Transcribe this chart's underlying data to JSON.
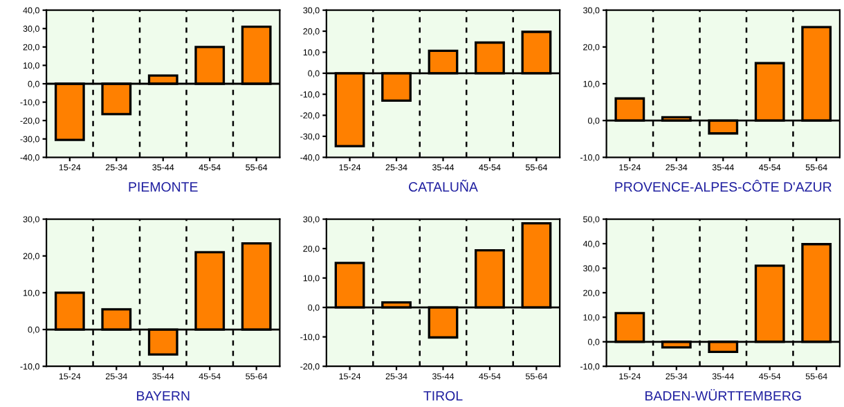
{
  "chart_data": [
    {
      "type": "bar",
      "xlabel": "PIEMONTE",
      "categories": [
        "15-24",
        "25-34",
        "35-44",
        "45-54",
        "55-64"
      ],
      "values": [
        -30.5,
        -16.5,
        4.5,
        20,
        31
      ],
      "color": "#ff8000",
      "ylim": [
        -40,
        40
      ],
      "yticks": [
        {
          "value": -40,
          "label": "-40,0"
        },
        {
          "value": -30,
          "label": "-30,0"
        },
        {
          "value": -20,
          "label": "-20,0"
        },
        {
          "value": -10,
          "label": "-10,0"
        },
        {
          "value": 0,
          "label": "0,0"
        },
        {
          "value": 10,
          "label": "10,0"
        },
        {
          "value": 20,
          "label": "20,0"
        },
        {
          "value": 30,
          "label": "30,0"
        },
        {
          "value": 40,
          "label": "40,0"
        }
      ],
      "grid": "x"
    },
    {
      "type": "bar",
      "xlabel": "CATALUÑA",
      "categories": [
        "15-24",
        "25-34",
        "35-44",
        "45-54",
        "55-64"
      ],
      "values": [
        -34.7,
        -13,
        10.7,
        14.6,
        19.7
      ],
      "color": "#ff8000",
      "ylim": [
        -40,
        30
      ],
      "yticks": [
        {
          "value": -40,
          "label": "-40,0"
        },
        {
          "value": -30,
          "label": "-30,0"
        },
        {
          "value": -20,
          "label": "-20,0"
        },
        {
          "value": -10,
          "label": "-10,0"
        },
        {
          "value": 0,
          "label": "0,0"
        },
        {
          "value": 10,
          "label": "10,0"
        },
        {
          "value": 20,
          "label": "20,0"
        },
        {
          "value": 30,
          "label": "30,0"
        }
      ],
      "grid": "x"
    },
    {
      "type": "bar",
      "xlabel": "PROVENCE-ALPES-CÔTE D'AZUR",
      "categories": [
        "15-24",
        "25-34",
        "35-44",
        "45-54",
        "55-64"
      ],
      "values": [
        6,
        0.9,
        -3.5,
        15.6,
        25.4
      ],
      "color": "#ff8000",
      "ylim": [
        -10,
        30
      ],
      "yticks": [
        {
          "value": -10,
          "label": "-10,0"
        },
        {
          "value": 0,
          "label": "0,0"
        },
        {
          "value": 10,
          "label": "10,0"
        },
        {
          "value": 20,
          "label": "20,0"
        },
        {
          "value": 30,
          "label": "30,0"
        }
      ],
      "grid": "x"
    },
    {
      "type": "bar",
      "xlabel": "BAYERN",
      "categories": [
        "15-24",
        "25-34",
        "35-44",
        "45-54",
        "55-64"
      ],
      "values": [
        10,
        5.5,
        -6.8,
        21,
        23.4
      ],
      "color": "#ff8000",
      "ylim": [
        -10,
        30
      ],
      "yticks": [
        {
          "value": -10,
          "label": "-10,0"
        },
        {
          "value": 0,
          "label": "0,0"
        },
        {
          "value": 10,
          "label": "10,0"
        },
        {
          "value": 20,
          "label": "20,0"
        },
        {
          "value": 30,
          "label": "30,0"
        }
      ],
      "grid": "x"
    },
    {
      "type": "bar",
      "xlabel": "TIROL",
      "categories": [
        "15-24",
        "25-34",
        "35-44",
        "45-54",
        "55-64"
      ],
      "values": [
        15.1,
        1.7,
        -10.2,
        19.4,
        28.6
      ],
      "color": "#ff8000",
      "ylim": [
        -20,
        30
      ],
      "yticks": [
        {
          "value": -20,
          "label": "-20,0"
        },
        {
          "value": -10,
          "label": "-10,0"
        },
        {
          "value": 0,
          "label": "0,0"
        },
        {
          "value": 10,
          "label": "10,0"
        },
        {
          "value": 20,
          "label": "20,0"
        },
        {
          "value": 30,
          "label": "30,0"
        }
      ],
      "grid": "x"
    },
    {
      "type": "bar",
      "xlabel": "BADEN-WÜRTTEMBERG",
      "categories": [
        "15-24",
        "25-34",
        "35-44",
        "45-54",
        "55-64"
      ],
      "values": [
        11.7,
        -2.3,
        -4.1,
        31,
        39.8
      ],
      "color": "#ff8000",
      "ylim": [
        -10,
        50
      ],
      "yticks": [
        {
          "value": -10,
          "label": "-10,0"
        },
        {
          "value": 0,
          "label": "0,0"
        },
        {
          "value": 10,
          "label": "10,0"
        },
        {
          "value": 20,
          "label": "20,0"
        },
        {
          "value": 30,
          "label": "30,0"
        },
        {
          "value": 40,
          "label": "40,0"
        },
        {
          "value": 50,
          "label": "50,0"
        }
      ],
      "grid": "x"
    }
  ]
}
